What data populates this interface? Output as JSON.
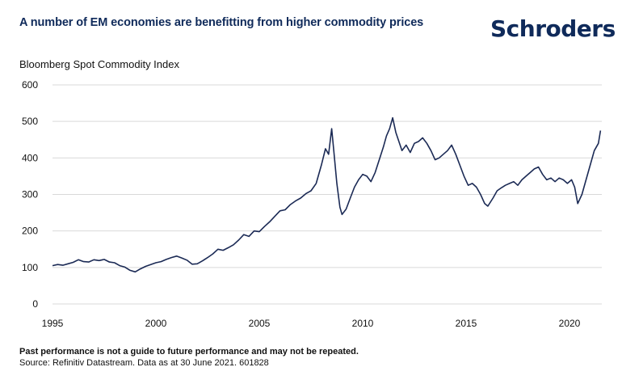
{
  "header": {
    "title": "A number of EM economies are benefitting from higher commodity prices",
    "logo": "Schroders"
  },
  "footer": {
    "disclaimer": "Past performance is not a guide to future performance and may not be repeated.",
    "source": "Source: Refinitiv Datastream. Data as at 30 June 2021. 601828"
  },
  "colors": {
    "line": "#1b2a55",
    "grid": "#d9d9d9",
    "brand": "#0f2a5a"
  },
  "chart_data": {
    "type": "line",
    "title": "Bloomberg Spot Commodity Index",
    "xlabel": "",
    "ylabel": "",
    "ylim": [
      0,
      600
    ],
    "xlim": [
      1995,
      2021.5
    ],
    "grid": true,
    "legend": "none",
    "yticks": [
      0,
      100,
      200,
      300,
      400,
      500,
      600
    ],
    "ytick_labels": [
      "0",
      "100",
      "200",
      "300",
      "400",
      "500",
      "600"
    ],
    "xticks": [
      1995,
      2000,
      2005,
      2010,
      2015,
      2020
    ],
    "xtick_labels": [
      "1995",
      "2000",
      "2005",
      "2010",
      "2015",
      "2020"
    ],
    "series": [
      {
        "name": "Bloomberg Spot Commodity Index",
        "x": [
          1995.0,
          1995.25,
          1995.5,
          1995.75,
          1996.0,
          1996.25,
          1996.5,
          1996.75,
          1997.0,
          1997.25,
          1997.5,
          1997.75,
          1998.0,
          1998.25,
          1998.5,
          1998.75,
          1999.0,
          1999.25,
          1999.5,
          1999.75,
          2000.0,
          2000.25,
          2000.5,
          2000.75,
          2001.0,
          2001.25,
          2001.5,
          2001.75,
          2002.0,
          2002.25,
          2002.5,
          2002.75,
          2003.0,
          2003.25,
          2003.5,
          2003.75,
          2004.0,
          2004.25,
          2004.5,
          2004.75,
          2005.0,
          2005.25,
          2005.5,
          2005.75,
          2006.0,
          2006.25,
          2006.5,
          2006.75,
          2007.0,
          2007.25,
          2007.5,
          2007.75,
          2008.0,
          2008.2,
          2008.35,
          2008.5,
          2008.6,
          2008.75,
          2008.9,
          2009.0,
          2009.2,
          2009.4,
          2009.6,
          2009.8,
          2010.0,
          2010.2,
          2010.4,
          2010.6,
          2010.8,
          2011.0,
          2011.15,
          2011.3,
          2011.45,
          2011.6,
          2011.75,
          2011.9,
          2012.1,
          2012.3,
          2012.5,
          2012.7,
          2012.9,
          2013.1,
          2013.3,
          2013.5,
          2013.7,
          2013.9,
          2014.1,
          2014.3,
          2014.5,
          2014.7,
          2014.9,
          2015.1,
          2015.3,
          2015.5,
          2015.7,
          2015.9,
          2016.05,
          2016.3,
          2016.5,
          2016.7,
          2016.9,
          2017.1,
          2017.3,
          2017.5,
          2017.7,
          2017.9,
          2018.1,
          2018.3,
          2018.5,
          2018.7,
          2018.9,
          2019.1,
          2019.3,
          2019.5,
          2019.7,
          2019.9,
          2020.1,
          2020.25,
          2020.4,
          2020.6,
          2020.8,
          2021.0,
          2021.2,
          2021.4,
          2021.5
        ],
        "values": [
          105,
          108,
          106,
          110,
          114,
          121,
          116,
          115,
          121,
          119,
          122,
          115,
          113,
          105,
          101,
          92,
          88,
          96,
          103,
          108,
          113,
          116,
          122,
          127,
          131,
          126,
          120,
          109,
          110,
          118,
          127,
          137,
          150,
          147,
          154,
          162,
          175,
          190,
          185,
          200,
          198,
          212,
          225,
          240,
          255,
          258,
          272,
          282,
          290,
          302,
          310,
          330,
          380,
          425,
          410,
          480,
          420,
          330,
          265,
          245,
          260,
          290,
          320,
          340,
          355,
          350,
          335,
          360,
          395,
          430,
          460,
          480,
          510,
          470,
          445,
          420,
          435,
          415,
          440,
          445,
          455,
          440,
          420,
          395,
          400,
          410,
          420,
          435,
          410,
          380,
          350,
          325,
          330,
          320,
          300,
          275,
          268,
          290,
          310,
          318,
          325,
          330,
          335,
          325,
          340,
          350,
          360,
          370,
          375,
          355,
          340,
          345,
          335,
          345,
          340,
          330,
          340,
          320,
          275,
          300,
          340,
          380,
          420,
          440,
          475
        ]
      }
    ]
  }
}
